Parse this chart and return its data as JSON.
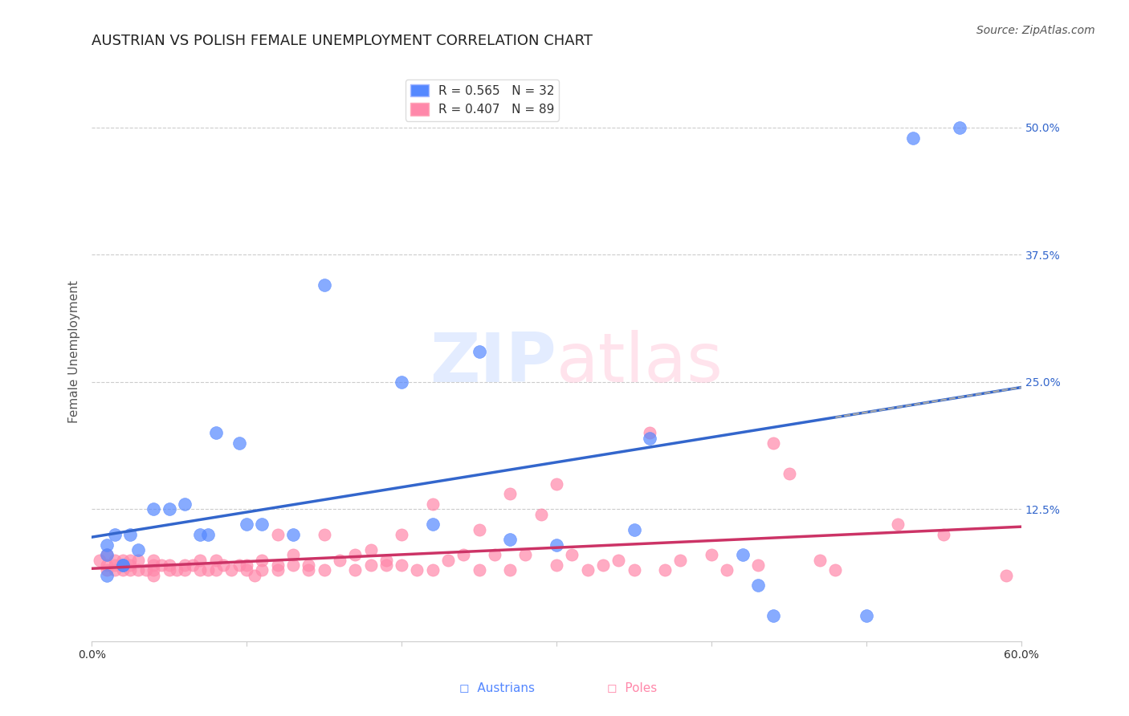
{
  "title": "AUSTRIAN VS POLISH FEMALE UNEMPLOYMENT CORRELATION CHART",
  "source": "Source: ZipAtlas.com",
  "xlabel": "",
  "ylabel": "Female Unemployment",
  "watermark": "ZIPatlas",
  "xlim": [
    0.0,
    0.6
  ],
  "ylim": [
    -0.005,
    0.565
  ],
  "xticks": [
    0.0,
    0.1,
    0.2,
    0.3,
    0.4,
    0.5,
    0.6
  ],
  "xtick_labels": [
    "0.0%",
    "",
    "",
    "",
    "",
    "",
    "60.0%"
  ],
  "ytick_right_vals": [
    0.125,
    0.25,
    0.375,
    0.5
  ],
  "ytick_right_labels": [
    "12.5%",
    "25.0%",
    "37.5%",
    "50.0%"
  ],
  "legend_entries": [
    {
      "label": "R = 0.565   N = 32",
      "color": "#6699ff"
    },
    {
      "label": "R = 0.407   N = 89",
      "color": "#ff99aa"
    }
  ],
  "austrians_x": [
    0.02,
    0.01,
    0.01,
    0.01,
    0.015,
    0.02,
    0.025,
    0.03,
    0.04,
    0.05,
    0.06,
    0.07,
    0.075,
    0.08,
    0.095,
    0.1,
    0.11,
    0.13,
    0.15,
    0.2,
    0.22,
    0.25,
    0.27,
    0.3,
    0.35,
    0.36,
    0.42,
    0.43,
    0.44,
    0.5,
    0.53,
    0.56
  ],
  "austrians_y": [
    0.07,
    0.06,
    0.08,
    0.09,
    0.1,
    0.07,
    0.1,
    0.085,
    0.125,
    0.125,
    0.13,
    0.1,
    0.1,
    0.2,
    0.19,
    0.11,
    0.11,
    0.1,
    0.345,
    0.25,
    0.11,
    0.28,
    0.095,
    0.09,
    0.105,
    0.195,
    0.08,
    0.05,
    0.02,
    0.02,
    0.49,
    0.5
  ],
  "poles_x": [
    0.005,
    0.01,
    0.01,
    0.01,
    0.015,
    0.015,
    0.015,
    0.02,
    0.02,
    0.02,
    0.025,
    0.025,
    0.025,
    0.03,
    0.03,
    0.035,
    0.04,
    0.04,
    0.04,
    0.04,
    0.045,
    0.05,
    0.05,
    0.055,
    0.06,
    0.06,
    0.065,
    0.07,
    0.07,
    0.075,
    0.08,
    0.08,
    0.085,
    0.09,
    0.095,
    0.1,
    0.1,
    0.105,
    0.11,
    0.11,
    0.12,
    0.12,
    0.12,
    0.13,
    0.13,
    0.14,
    0.14,
    0.15,
    0.15,
    0.16,
    0.17,
    0.17,
    0.18,
    0.18,
    0.19,
    0.19,
    0.2,
    0.2,
    0.21,
    0.22,
    0.22,
    0.23,
    0.24,
    0.25,
    0.25,
    0.26,
    0.27,
    0.27,
    0.28,
    0.29,
    0.3,
    0.3,
    0.31,
    0.32,
    0.33,
    0.34,
    0.35,
    0.36,
    0.37,
    0.38,
    0.4,
    0.41,
    0.43,
    0.44,
    0.45,
    0.47,
    0.48,
    0.52,
    0.55,
    0.59
  ],
  "poles_y": [
    0.075,
    0.07,
    0.08,
    0.065,
    0.075,
    0.07,
    0.065,
    0.075,
    0.07,
    0.065,
    0.07,
    0.075,
    0.065,
    0.065,
    0.075,
    0.065,
    0.07,
    0.06,
    0.075,
    0.065,
    0.07,
    0.065,
    0.07,
    0.065,
    0.07,
    0.065,
    0.07,
    0.065,
    0.075,
    0.065,
    0.075,
    0.065,
    0.07,
    0.065,
    0.07,
    0.07,
    0.065,
    0.06,
    0.075,
    0.065,
    0.1,
    0.07,
    0.065,
    0.08,
    0.07,
    0.07,
    0.065,
    0.1,
    0.065,
    0.075,
    0.08,
    0.065,
    0.085,
    0.07,
    0.07,
    0.075,
    0.1,
    0.07,
    0.065,
    0.13,
    0.065,
    0.075,
    0.08,
    0.105,
    0.065,
    0.08,
    0.14,
    0.065,
    0.08,
    0.12,
    0.15,
    0.07,
    0.08,
    0.065,
    0.07,
    0.075,
    0.065,
    0.2,
    0.065,
    0.075,
    0.08,
    0.065,
    0.07,
    0.19,
    0.16,
    0.075,
    0.065,
    0.11,
    0.1,
    0.06
  ],
  "blue_color": "#5588ff",
  "pink_color": "#ff88aa",
  "blue_line_color": "#3366cc",
  "pink_line_color": "#cc3366",
  "background_color": "#ffffff",
  "grid_color": "#cccccc",
  "title_fontsize": 13,
  "axis_label_fontsize": 11,
  "tick_fontsize": 10,
  "legend_fontsize": 11,
  "source_fontsize": 10
}
